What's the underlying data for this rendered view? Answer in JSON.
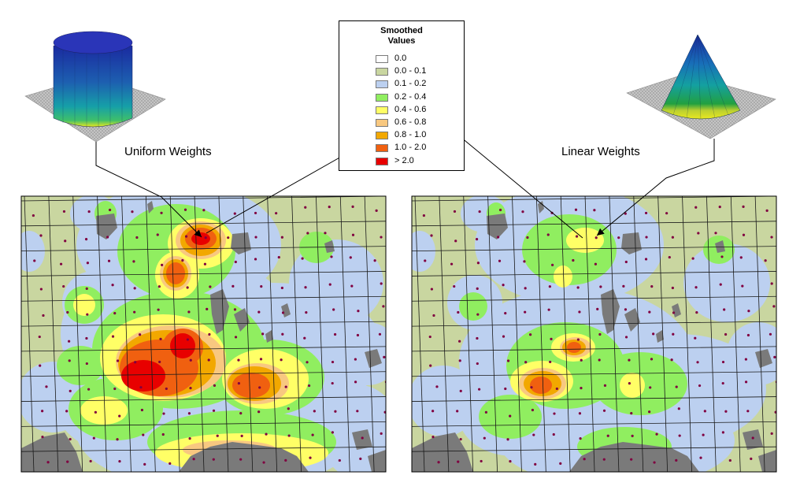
{
  "legend": {
    "title_line1": "Smoothed",
    "title_line2": "Values",
    "classes": [
      {
        "label": "0.0",
        "color": "#ffffff"
      },
      {
        "label": "0.0 - 0.1",
        "color": "#c9d6a0"
      },
      {
        "label": "0.1 - 0.2",
        "color": "#bcd0f0"
      },
      {
        "label": "0.2 - 0.4",
        "color": "#90ee60"
      },
      {
        "label": "0.4 - 0.6",
        "color": "#ffff66"
      },
      {
        "label": "0.6 - 0.8",
        "color": "#f8c880"
      },
      {
        "label": "0.8 - 1.0",
        "color": "#f2a800"
      },
      {
        "label": "1.0 - 2.0",
        "color": "#f06010"
      },
      {
        "label": "> 2.0",
        "color": "#e80000"
      }
    ]
  },
  "panels": {
    "uniform": {
      "caption": "Uniform Weights",
      "kernel_shape": "cylinder"
    },
    "linear": {
      "caption": "Linear Weights",
      "kernel_shape": "cone"
    }
  },
  "colors": {
    "background_land": "#c9d6a0",
    "water": "#7a7a7a",
    "grid_line": "#1a1a1a",
    "sample_point": "#800040"
  }
}
